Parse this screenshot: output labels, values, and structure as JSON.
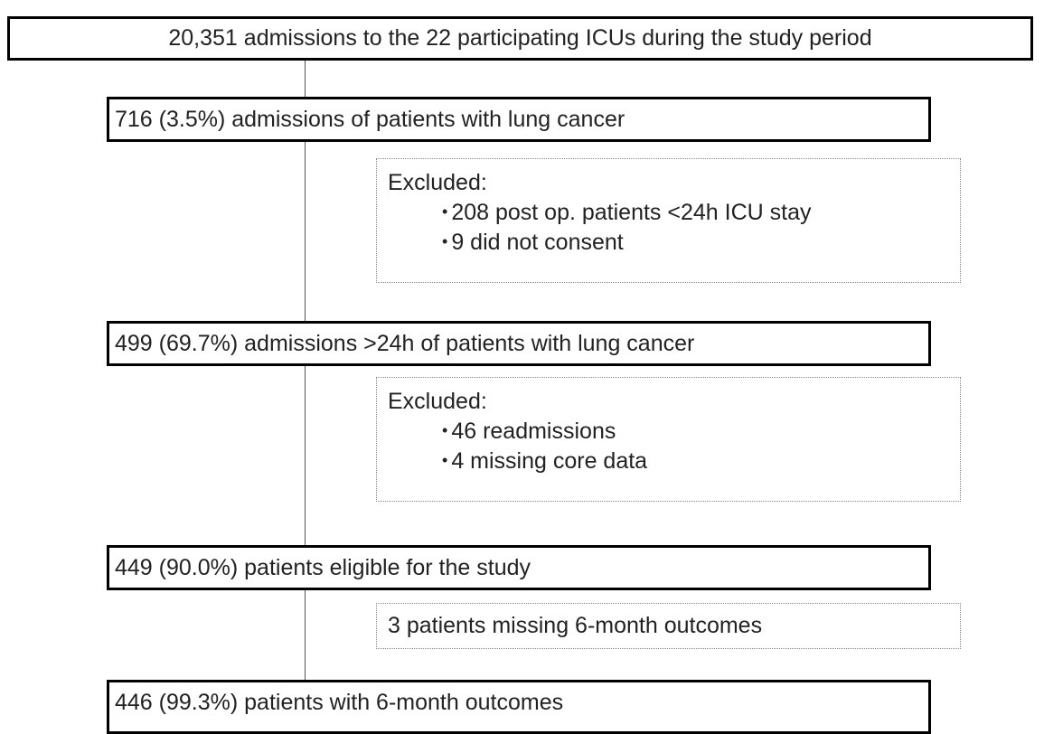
{
  "nodes": [
    {
      "label": "20,351 admissions to the 22 participating ICUs during the study period"
    },
    {
      "label": "716 (3.5%) admissions of patients with lung cancer"
    },
    {
      "label": "499 (69.7%) admissions >24h of patients with lung cancer"
    },
    {
      "label": "449 (90.0%) patients eligible for the study"
    },
    {
      "label": "446 (99.3%) patients with 6-month outcomes"
    }
  ],
  "exclusions": [
    {
      "title": "Excluded:",
      "items": [
        "208 post op. patients <24h ICU stay",
        "9 did not consent"
      ]
    },
    {
      "title": "Excluded:",
      "items": [
        "46 readmissions",
        "4 missing core data"
      ]
    },
    {
      "title": "3 patients missing 6-month outcomes"
    }
  ]
}
